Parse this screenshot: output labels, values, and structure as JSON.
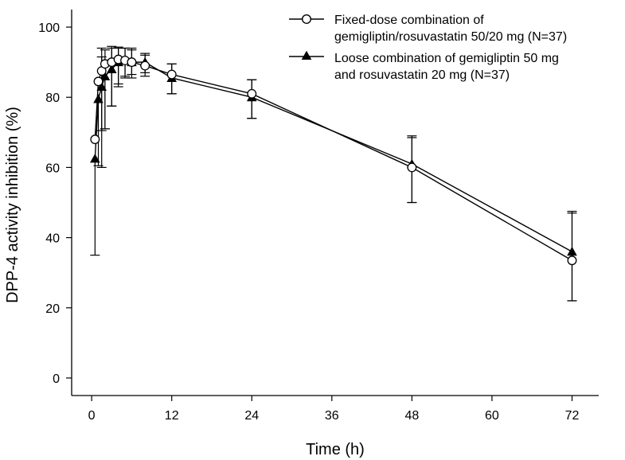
{
  "chart_data": {
    "type": "line",
    "title": "",
    "xlabel": "Time (h)",
    "ylabel": "DPP-4 activity inhibition (%)",
    "xlim": [
      -3,
      76
    ],
    "ylim": [
      -5,
      105
    ],
    "xticks": [
      0,
      12,
      24,
      36,
      48,
      60,
      72
    ],
    "yticks": [
      0,
      20,
      40,
      60,
      80,
      100
    ],
    "xtick_labels": [
      "0",
      "12",
      "24",
      "36",
      "48",
      "60",
      "72"
    ],
    "ytick_labels": [
      "0",
      "20",
      "40",
      "60",
      "80",
      "100"
    ],
    "grid": false,
    "legend_position": "top-right",
    "series": [
      {
        "name_line1": "Fixed-dose combination of",
        "name_line2": "gemigliptin/rosuvastatin 50/20 mg (N=37)",
        "marker": "open-circle",
        "color": "#000000",
        "x": [
          0.5,
          1,
          1.5,
          2,
          3,
          4,
          5,
          6,
          8,
          12,
          24,
          48,
          72
        ],
        "y": [
          68,
          84.5,
          87.5,
          89.5,
          90,
          90.8,
          90.5,
          90,
          89,
          86.5,
          81,
          60,
          33.5
        ],
        "err_up": [
          null,
          null,
          4,
          4,
          4,
          3.5,
          3.5,
          3.5,
          3,
          3,
          4,
          8.5,
          13.5
        ],
        "err_low": [
          null,
          null,
          17,
          18.5,
          12.5,
          7,
          4.5,
          4.5,
          3,
          5.5,
          7,
          10,
          11.5
        ]
      },
      {
        "name_line1": "Loose combination of gemigliptin 50 mg",
        "name_line2": "and rosuvastatin 20 mg (N=37)",
        "marker": "filled-triangle",
        "color": "#000000",
        "x": [
          0.5,
          1,
          1.5,
          2,
          3,
          4,
          5,
          6,
          8,
          12,
          24,
          48,
          72
        ],
        "y": [
          62.5,
          79.5,
          83,
          86,
          88,
          90,
          90.5,
          90,
          90,
          85.5,
          80,
          61,
          36
        ],
        "err_up": [
          null,
          null,
          11,
          null,
          6.5,
          4,
          3.5,
          4,
          2.5,
          4,
          5,
          8,
          11.5
        ],
        "err_low": [
          27.5,
          19,
          23,
          15,
          10.5,
          7,
          5,
          3.5,
          3,
          4.5,
          6,
          11,
          14
        ]
      }
    ]
  }
}
